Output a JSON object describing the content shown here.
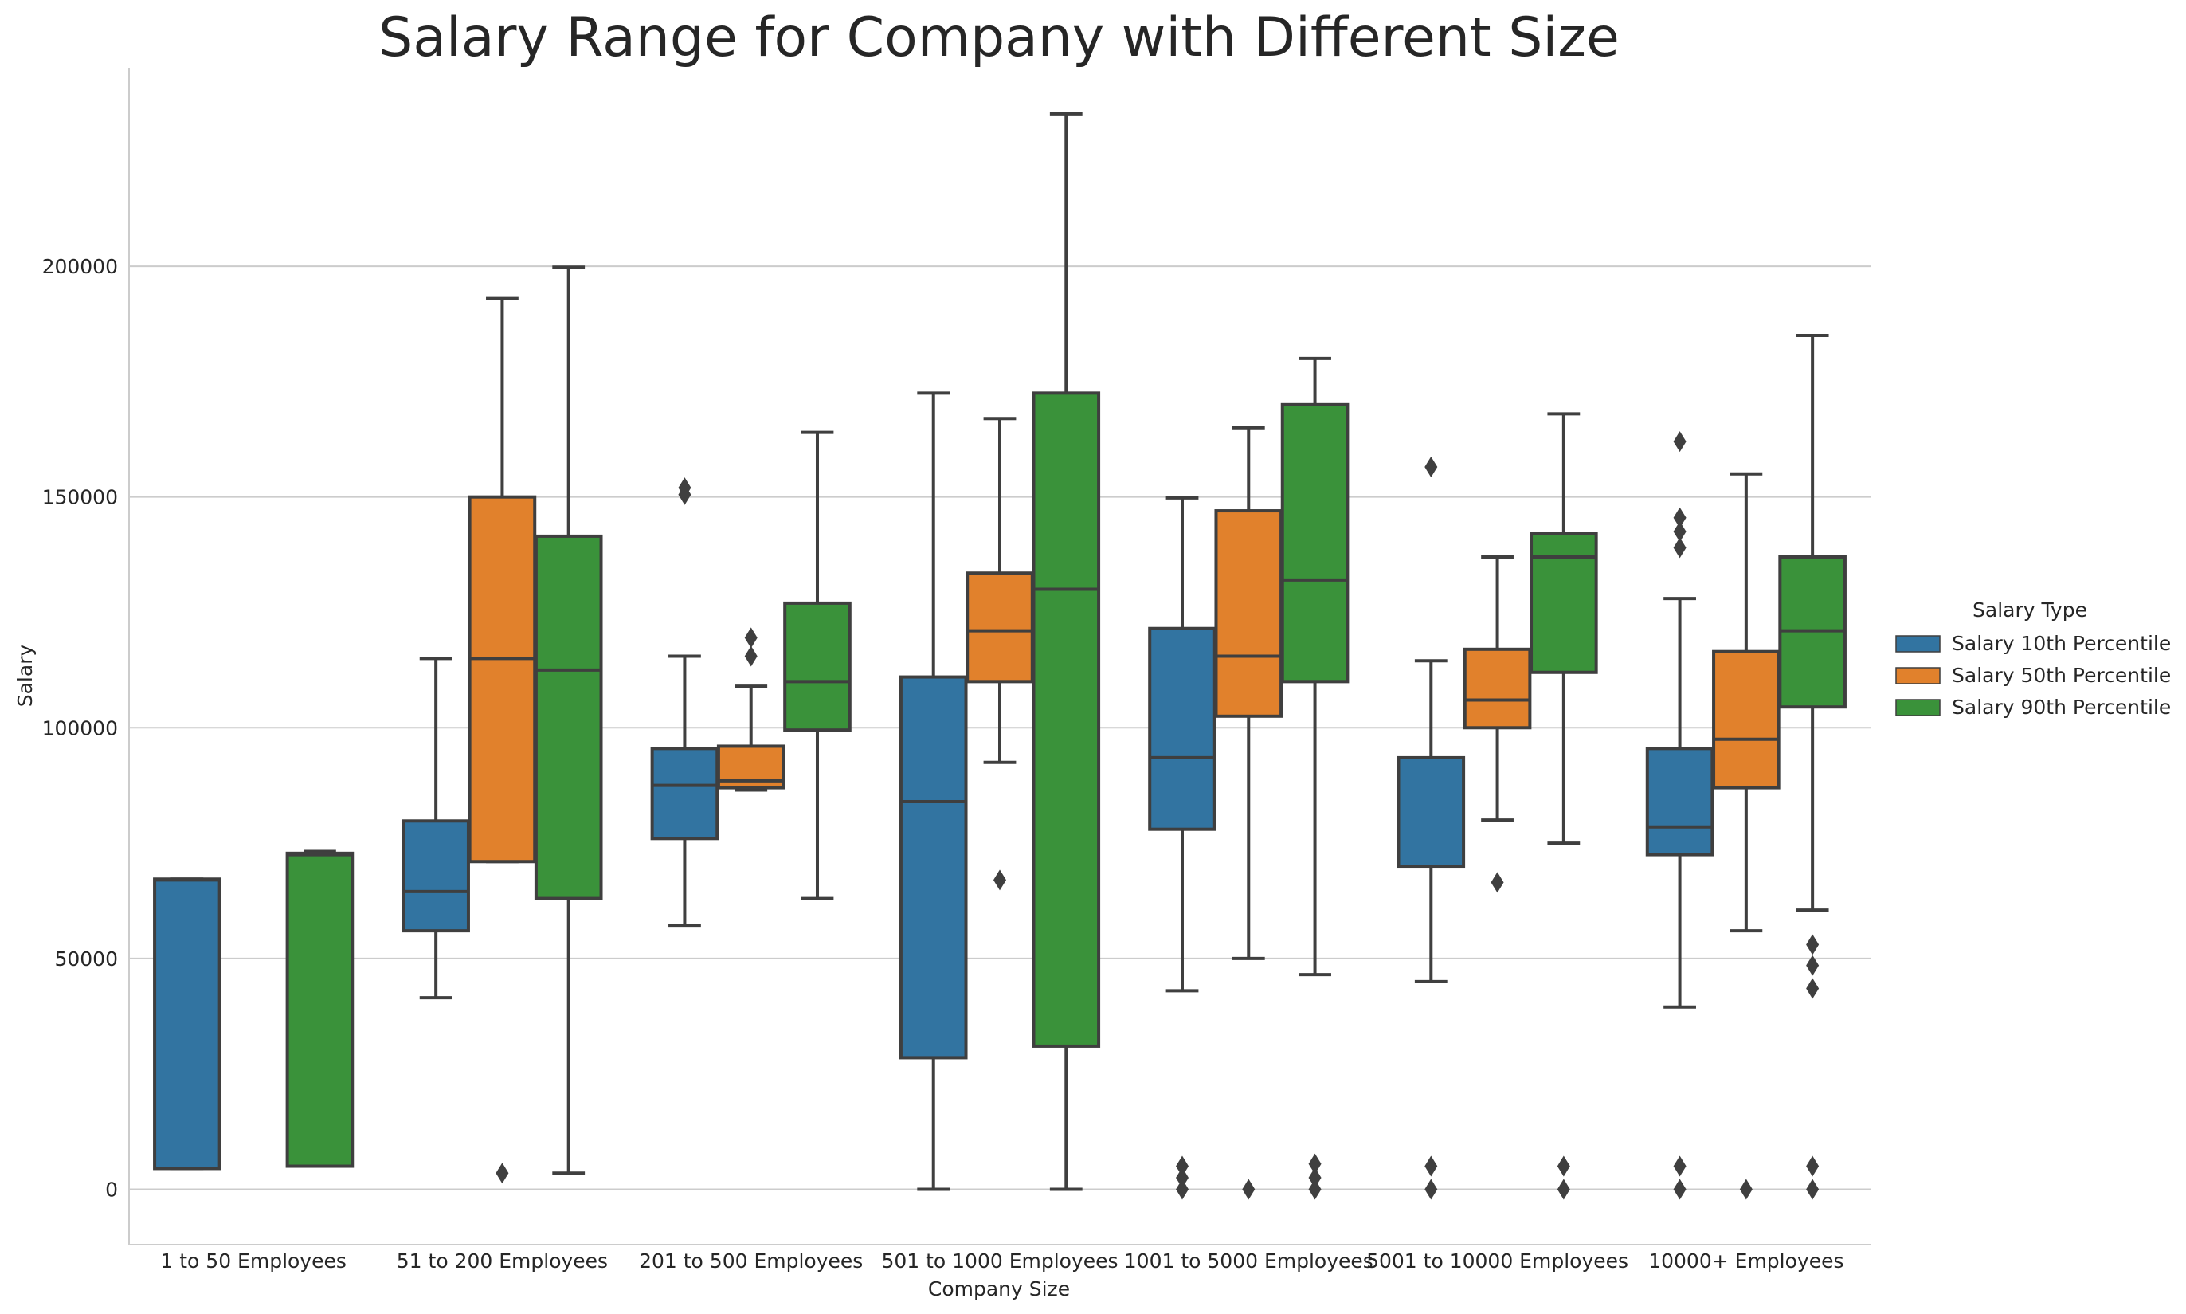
{
  "chart_data": {
    "type": "box",
    "title": "Salary Range for Company with Different Size",
    "xlabel": "Company Size",
    "ylabel": "Salary",
    "ylim": [
      -12000,
      243000
    ],
    "yticks": [
      0,
      50000,
      100000,
      150000,
      200000
    ],
    "grid": "horizontal",
    "legend": {
      "title": "Salary Type",
      "placement": "right"
    },
    "categories": [
      "1 to 50 Employees",
      "51 to 200 Employees",
      "201 to 500 Employees",
      "501 to 1000 Employees",
      "1001 to 5000 Employees",
      "5001 to 10000 Employees",
      "10000+ Employees"
    ],
    "series": [
      {
        "name": "Salary 10th Percentile",
        "color": "#3274a1",
        "boxes": [
          {
            "whislo": 4500,
            "q1": 4500,
            "med": 67000,
            "q3": 67200,
            "whishi": 67200,
            "fliers": []
          },
          {
            "whislo": 41500,
            "q1": 56000,
            "med": 64500,
            "q3": 79800,
            "whishi": 115000,
            "fliers": []
          },
          {
            "whislo": 57200,
            "q1": 76000,
            "med": 87500,
            "q3": 95500,
            "whishi": 115500,
            "fliers": [
              150500,
              152000
            ]
          },
          {
            "whislo": 0,
            "q1": 28500,
            "med": 84000,
            "q3": 111000,
            "whishi": 172500,
            "fliers": []
          },
          {
            "whislo": 43000,
            "q1": 78000,
            "med": 93500,
            "q3": 121500,
            "whishi": 149800,
            "fliers": [
              0,
              2500,
              5000
            ]
          },
          {
            "whislo": 45000,
            "q1": 70000,
            "med": 70000,
            "q3": 93500,
            "whishi": 114500,
            "fliers": [
              0,
              5000,
              156500
            ]
          },
          {
            "whislo": 39500,
            "q1": 72500,
            "med": 78500,
            "q3": 95500,
            "whishi": 128000,
            "fliers": [
              0,
              5000,
              139000,
              142500,
              145500,
              162000
            ]
          }
        ]
      },
      {
        "name": "Salary 50th Percentile",
        "color": "#e1812c",
        "boxes": [
          null,
          {
            "whislo": 71000,
            "q1": 71000,
            "med": 115000,
            "q3": 150000,
            "whishi": 193000,
            "fliers": [
              3500
            ]
          },
          {
            "whislo": 86500,
            "q1": 87000,
            "med": 88500,
            "q3": 96000,
            "whishi": 109000,
            "fliers": [
              115500,
              119500
            ]
          },
          {
            "whislo": 92500,
            "q1": 110000,
            "med": 121000,
            "q3": 133500,
            "whishi": 167000,
            "fliers": [
              67000
            ]
          },
          {
            "whislo": 50000,
            "q1": 102500,
            "med": 115500,
            "q3": 147000,
            "whishi": 165000,
            "fliers": [
              0
            ]
          },
          {
            "whislo": 80000,
            "q1": 100000,
            "med": 106000,
            "q3": 117000,
            "whishi": 137000,
            "fliers": [
              66500
            ]
          },
          {
            "whislo": 56000,
            "q1": 87000,
            "med": 97500,
            "q3": 116500,
            "whishi": 155000,
            "fliers": [
              0
            ]
          }
        ]
      },
      {
        "name": "Salary 90th Percentile",
        "color": "#3a923a",
        "boxes": [
          {
            "whislo": 5000,
            "q1": 5000,
            "med": 72500,
            "q3": 72800,
            "whishi": 73200,
            "fliers": []
          },
          {
            "whislo": 3500,
            "q1": 63000,
            "med": 112500,
            "q3": 141500,
            "whishi": 199800,
            "fliers": []
          },
          {
            "whislo": 63000,
            "q1": 99500,
            "med": 110000,
            "q3": 127000,
            "whishi": 164000,
            "fliers": []
          },
          {
            "whislo": 0,
            "q1": 31000,
            "med": 130000,
            "q3": 172500,
            "whishi": 233000,
            "fliers": []
          },
          {
            "whislo": 46500,
            "q1": 110000,
            "med": 132000,
            "q3": 170000,
            "whishi": 180000,
            "fliers": [
              0,
              2500,
              5500
            ]
          },
          {
            "whislo": 75000,
            "q1": 112000,
            "med": 137000,
            "q3": 142000,
            "whishi": 168000,
            "fliers": [
              0,
              5000
            ]
          },
          {
            "whislo": 60500,
            "q1": 104500,
            "med": 121000,
            "q3": 137000,
            "whishi": 185000,
            "fliers": [
              0,
              5000,
              43500,
              48500,
              53000
            ]
          }
        ]
      }
    ]
  }
}
